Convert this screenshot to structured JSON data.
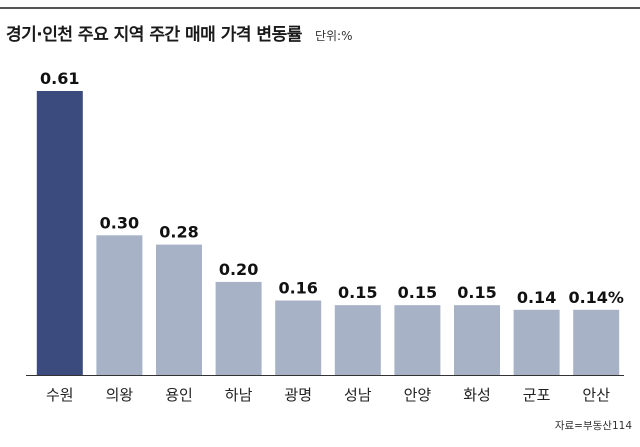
{
  "chart_data": {
    "type": "bar",
    "title": "경기·인천 주요 지역 주간 매매 가격 변동률",
    "unit": "단위:%",
    "source": "자료=부동산114",
    "categories": [
      "수원",
      "의왕",
      "용인",
      "하남",
      "광명",
      "성남",
      "안양",
      "화성",
      "군포",
      "안산"
    ],
    "values": [
      0.61,
      0.3,
      0.28,
      0.2,
      0.16,
      0.15,
      0.15,
      0.15,
      0.14,
      0.14
    ],
    "data_labels": [
      "0.61",
      "0.30",
      "0.28",
      "0.20",
      "0.16",
      "0.15",
      "0.15",
      "0.15",
      "0.14",
      "0.14%"
    ],
    "ylim": [
      0,
      0.61
    ],
    "grid": false,
    "colors": {
      "highlight": "#3b4b7e",
      "normal": "#a7b2c7",
      "axis": "#333333"
    },
    "highlight_index": 0
  }
}
